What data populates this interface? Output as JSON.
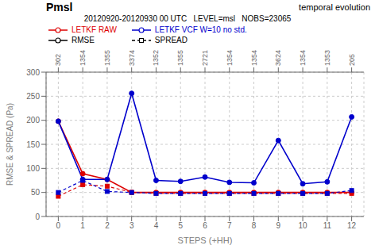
{
  "chart_data": {
    "type": "line",
    "title": "Pmsl",
    "subtitle": "20120920-20120930 00 UTC   LEVEL=msl   NOBS=23065",
    "annotations": [
      "temporal evolution"
    ],
    "x_label": "STEPS (+HH)",
    "y_label": "RMSE & SPREAD (Pa)",
    "x": [
      0,
      1,
      2,
      3,
      4,
      5,
      6,
      7,
      8,
      9,
      10,
      11,
      12
    ],
    "xlim": [
      -0.5,
      12.5
    ],
    "xticks": [
      0,
      1,
      2,
      3,
      4,
      5,
      6,
      7,
      8,
      9,
      10,
      11,
      12
    ],
    "x2ticks": [
      {
        "value": 0,
        "label": "302"
      },
      {
        "value": 1,
        "label": "1354"
      },
      {
        "value": 2,
        "label": "1355"
      },
      {
        "value": 3,
        "label": "3374"
      },
      {
        "value": 4,
        "label": "1352"
      },
      {
        "value": 5,
        "label": "1355"
      },
      {
        "value": 6,
        "label": "2721"
      },
      {
        "value": 7,
        "label": "1354"
      },
      {
        "value": 8,
        "label": "1354"
      },
      {
        "value": 9,
        "label": "3624"
      },
      {
        "value": 10,
        "label": "1354"
      },
      {
        "value": 11,
        "label": "1353"
      },
      {
        "value": 12,
        "label": "205"
      }
    ],
    "ylim": [
      0,
      300
    ],
    "yticks": [
      0,
      50,
      100,
      150,
      200,
      250,
      300
    ],
    "grid": true,
    "series": [
      {
        "name": "LETKF RAW",
        "color": "#dd0000",
        "series": [
          {
            "name": "RMSE",
            "line_style": "solid",
            "marker": "circle",
            "values": [
              198,
              89,
              77,
              50,
              50,
              50,
              50,
              50,
              50,
              50,
              50,
              50,
              50
            ]
          },
          {
            "name": "SPREAD",
            "line_style": "dashed",
            "marker": "square",
            "values": [
              42,
              66,
              63,
              50,
              48,
              48,
              48,
              48,
              48,
              48,
              48,
              48,
              48
            ]
          }
        ]
      },
      {
        "name": "LETKF VCF W=10 no std.",
        "color": "#0000cc",
        "series": [
          {
            "name": "RMSE",
            "line_style": "solid",
            "marker": "circle",
            "values": [
              198,
              77,
              77,
              256,
              75,
              73,
              82,
              71,
              70,
              158,
              68,
              72,
              207
            ]
          },
          {
            "name": "SPREAD",
            "line_style": "dashed",
            "marker": "square",
            "values": [
              50,
              75,
              52,
              50,
              48,
              48,
              48,
              48,
              48,
              48,
              48,
              48,
              54
            ]
          }
        ]
      }
    ]
  }
}
